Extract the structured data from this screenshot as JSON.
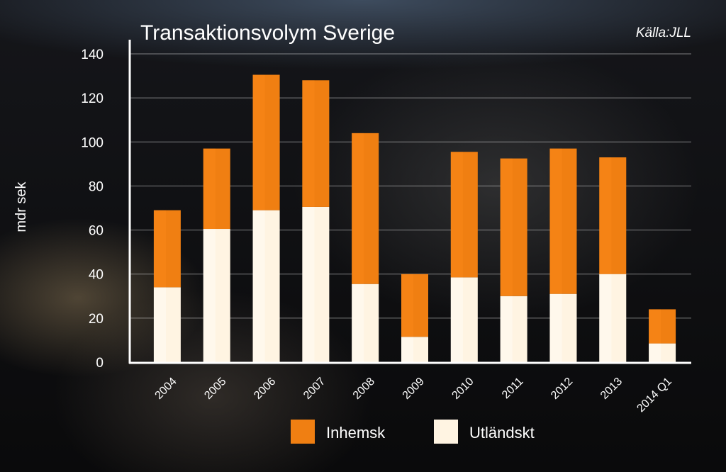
{
  "chart_data": {
    "type": "bar",
    "stacked": true,
    "title": "Transaktionsvolym Sverige",
    "source": "Källa:JLL",
    "ylabel": "mdr sek",
    "xlabel": "",
    "ylim": [
      0,
      140
    ],
    "yticks": [
      0,
      20,
      40,
      60,
      80,
      100,
      120,
      140
    ],
    "grid": true,
    "legend_position": "bottom",
    "categories": [
      "2004",
      "2005",
      "2006",
      "2007",
      "2008",
      "2009",
      "2010",
      "2011",
      "2012",
      "2013",
      "2014 Q1"
    ],
    "series": [
      {
        "name": "Utländskt",
        "color": "#fff4e2",
        "values": [
          34,
          60.5,
          69,
          70.5,
          35.5,
          11.5,
          38.5,
          30,
          31,
          40,
          8.5
        ]
      },
      {
        "name": "Inhemsk",
        "color": "#f07f12",
        "values": [
          35,
          36.5,
          61.5,
          57.5,
          68.5,
          28.5,
          57,
          62.5,
          66,
          53,
          15.5
        ]
      }
    ],
    "legend": [
      "Inhemsk",
      "Utländskt"
    ]
  }
}
